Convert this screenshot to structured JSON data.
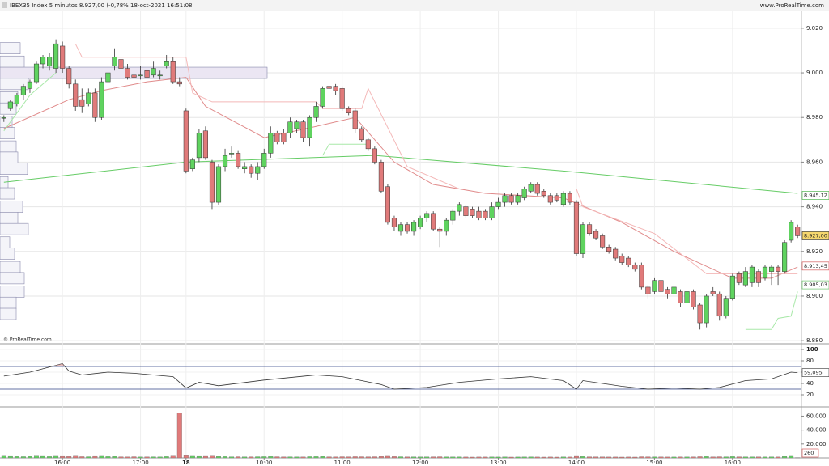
{
  "header": {
    "title": "IBEX35 Index 5 minutos 8.927,00 (-0,78% 18-oct-2021 16:51:08",
    "site": "www.ProRealTime.com",
    "copyright": "© ProRealTime.com"
  },
  "chart_data": [
    {
      "type": "candlestick",
      "xlim": [
        -0.6,
        122.6
      ],
      "xticks": [
        {
          "value": 9,
          "label": "16:00"
        },
        {
          "value": 21,
          "label": "17:00"
        },
        {
          "value": 28,
          "label": "18"
        },
        {
          "value": 40,
          "label": "10:00"
        },
        {
          "value": 52,
          "label": "11:00"
        },
        {
          "value": 64,
          "label": "12:00"
        },
        {
          "value": 76,
          "label": "13:00"
        },
        {
          "value": 88,
          "label": "14:00"
        },
        {
          "value": 100,
          "label": "15:00"
        },
        {
          "value": 112,
          "label": "16:00"
        }
      ],
      "ylim": [
        8878.6,
        9027.2
      ],
      "yticks": [
        {
          "value": 9020,
          "label": "9.020"
        },
        {
          "value": 9000,
          "label": "9.000"
        },
        {
          "value": 8980,
          "label": "8.980"
        },
        {
          "value": 8960,
          "label": "8.960"
        },
        {
          "value": 8940,
          "label": "8.940"
        },
        {
          "value": 8920,
          "label": "8.920"
        },
        {
          "value": 8900,
          "label": "8.900"
        },
        {
          "value": 8880,
          "label": "8.880"
        }
      ],
      "up_color": "#5fd35f",
      "down_color": "#e07a7a",
      "candles": [
        [
          8980,
          8981,
          8978,
          8980
        ],
        [
          8984,
          8988,
          8983,
          8987
        ],
        [
          8986,
          8991,
          8985,
          8990
        ],
        [
          8990,
          8995,
          8988,
          8994
        ],
        [
          8993,
          8997,
          8991,
          8996
        ],
        [
          8996,
          9005,
          8995,
          9004
        ],
        [
          9004,
          9008,
          9002,
          9007
        ],
        [
          9003,
          9009,
          9001,
          9007
        ],
        [
          9002,
          9015,
          9000,
          9013
        ],
        [
          9012,
          9014,
          9000,
          9002
        ],
        [
          9002,
          9003,
          8993,
          8995
        ],
        [
          8995,
          8997,
          8983,
          8985
        ],
        [
          8988,
          8993,
          8982,
          8985
        ],
        [
          8986,
          8993,
          8985,
          8991
        ],
        [
          8991,
          8993,
          8978,
          8980
        ],
        [
          8980,
          8998,
          8979,
          8996
        ],
        [
          8996,
          9002,
          8994,
          9000
        ],
        [
          9003,
          9011,
          9001,
          9007
        ],
        [
          9006,
          9007,
          9000,
          9002
        ],
        [
          9002,
          9004,
          8997,
          8998
        ],
        [
          8999,
          9002,
          8997,
          8998
        ],
        [
          8999,
          9003,
          8997,
          8999
        ],
        [
          9001,
          9002,
          8997,
          8998
        ],
        [
          8999,
          9005,
          8998,
          9002
        ],
        [
          8999,
          9001,
          8997,
          8999
        ],
        [
          9003,
          9008,
          9002,
          9005
        ],
        [
          9005,
          9007,
          8995,
          8996
        ],
        [
          8996,
          8998,
          8994,
          8995
        ],
        [
          8983,
          8984,
          8955,
          8956
        ],
        [
          8957,
          8962,
          8956,
          8961
        ],
        [
          8962,
          8975,
          8960,
          8973
        ],
        [
          8974,
          8976,
          8961,
          8962
        ],
        [
          8960,
          8961,
          8939,
          8942
        ],
        [
          8942,
          8959,
          8941,
          8958
        ],
        [
          8958,
          8966,
          8956,
          8963
        ],
        [
          8964,
          8967,
          8962,
          8964
        ],
        [
          8964,
          8965,
          8957,
          8958
        ],
        [
          8957,
          8960,
          8955,
          8958
        ],
        [
          8958,
          8959,
          8953,
          8955
        ],
        [
          8955,
          8960,
          8952,
          8958
        ],
        [
          8958,
          8966,
          8957,
          8964
        ],
        [
          8964,
          8976,
          8962,
          8973
        ],
        [
          8973,
          8974,
          8968,
          8969
        ],
        [
          8973,
          8975,
          8968,
          8969
        ],
        [
          8973,
          8980,
          8971,
          8978
        ],
        [
          8975,
          8979,
          8973,
          8978
        ],
        [
          8978,
          8979,
          8969,
          8971
        ],
        [
          8971,
          8981,
          8967,
          8980
        ],
        [
          8980,
          8987,
          8978,
          8985
        ],
        [
          8985,
          8994,
          8984,
          8993
        ],
        [
          8994,
          8996,
          8992,
          8993
        ],
        [
          8994,
          8995,
          8990,
          8992
        ],
        [
          8993,
          8994,
          8983,
          8984
        ],
        [
          8984,
          8985,
          8981,
          8982
        ],
        [
          8983,
          8984,
          8973,
          8975
        ],
        [
          8975,
          8976,
          8969,
          8970
        ],
        [
          8970,
          8971,
          8965,
          8966
        ],
        [
          8966,
          8967,
          8959,
          8960
        ],
        [
          8960,
          8961,
          8946,
          8947
        ],
        [
          8949,
          8950,
          8932,
          8933
        ],
        [
          8935,
          8936,
          8929,
          8931
        ],
        [
          8929,
          8933,
          8927,
          8932
        ],
        [
          8932,
          8933,
          8928,
          8929
        ],
        [
          8929,
          8934,
          8927,
          8933
        ],
        [
          8931,
          8936,
          8930,
          8935
        ],
        [
          8935,
          8938,
          8933,
          8937
        ],
        [
          8937,
          8938,
          8929,
          8930
        ],
        [
          8930,
          8931,
          8922,
          8929
        ],
        [
          8929,
          8935,
          8927,
          8934
        ],
        [
          8934,
          8939,
          8932,
          8938
        ],
        [
          8938,
          8942,
          8936,
          8941
        ],
        [
          8940,
          8941,
          8935,
          8936
        ],
        [
          8939,
          8940,
          8935,
          8936
        ],
        [
          8938,
          8940,
          8934,
          8935
        ],
        [
          8938,
          8939,
          8934,
          8935
        ],
        [
          8935,
          8942,
          8934,
          8940
        ],
        [
          8940,
          8944,
          8939,
          8942
        ],
        [
          8942,
          8946,
          8940,
          8945
        ],
        [
          8945,
          8946,
          8941,
          8942
        ],
        [
          8942,
          8946,
          8941,
          8945
        ],
        [
          8944,
          8949,
          8943,
          8948
        ],
        [
          8947,
          8951,
          8946,
          8950
        ],
        [
          8950,
          8951,
          8945,
          8946
        ],
        [
          8947,
          8948,
          8944,
          8945
        ],
        [
          8945,
          8946,
          8941,
          8942
        ],
        [
          8945,
          8946,
          8942,
          8943
        ],
        [
          8941,
          8947,
          8940,
          8946
        ],
        [
          8946,
          8947,
          8941,
          8942
        ],
        [
          8942,
          8943,
          8918,
          8919
        ],
        [
          8919,
          8933,
          8917,
          8932
        ],
        [
          8932,
          8933,
          8927,
          8928
        ],
        [
          8929,
          8930,
          8925,
          8926
        ],
        [
          8927,
          8928,
          8921,
          8922
        ],
        [
          8922,
          8923,
          8919,
          8920
        ],
        [
          8921,
          8922,
          8916,
          8917
        ],
        [
          8918,
          8919,
          8914,
          8915
        ],
        [
          8917,
          8918,
          8913,
          8914
        ],
        [
          8914,
          8915,
          8911,
          8912
        ],
        [
          8914,
          8915,
          8903,
          8904
        ],
        [
          8904,
          8905,
          8899,
          8901
        ],
        [
          8902,
          8908,
          8901,
          8907
        ],
        [
          8907,
          8908,
          8901,
          8902
        ],
        [
          8903,
          8904,
          8899,
          8901
        ],
        [
          8901,
          8905,
          8900,
          8904
        ],
        [
          8902,
          8903,
          8895,
          8897
        ],
        [
          8897,
          8903,
          8896,
          8902
        ],
        [
          8902,
          8903,
          8894,
          8895
        ],
        [
          8896,
          8897,
          8885,
          8888
        ],
        [
          8888,
          8901,
          8886,
          8900
        ],
        [
          8902,
          8904,
          8900,
          8901
        ],
        [
          8901,
          8902,
          8889,
          8891
        ],
        [
          8891,
          8900,
          8890,
          8899
        ],
        [
          8899,
          8910,
          8898,
          8909
        ],
        [
          8910,
          8911,
          8905,
          8906
        ],
        [
          8905,
          8913,
          8904,
          8911
        ],
        [
          8906,
          8914,
          8904,
          8913
        ],
        [
          8911,
          8912,
          8904,
          8906
        ],
        [
          8908,
          8914,
          8907,
          8913
        ],
        [
          8911,
          8914,
          8905,
          8913
        ],
        [
          8913,
          8914,
          8905,
          8911
        ],
        [
          8911,
          8925,
          8910,
          8924
        ],
        [
          8925,
          8934,
          8924,
          8933
        ],
        [
          8931,
          8932,
          8926,
          8927
        ]
      ],
      "series": [
        {
          "color": "#e08a8a",
          "x": [
            0,
            10,
            15,
            22,
            28,
            31,
            40,
            48,
            54,
            60,
            66,
            74,
            86,
            95,
            103,
            112,
            118,
            122
          ],
          "values": [
            8975,
            8988,
            8992,
            8996,
            8998,
            8985,
            8971,
            8976,
            8980,
            8960,
            8950,
            8946,
            8944,
            8933,
            8920,
            8908,
            8908,
            8913
          ]
        },
        {
          "color": "#66cc66",
          "x": [
            0,
            28,
            57,
            86,
            122
          ],
          "values": [
            8951,
            8960,
            8963,
            8956,
            8946
          ]
        },
        {
          "color": "#f4b8b8",
          "x": [
            11,
            12,
            28,
            29,
            32,
            48,
            49,
            55,
            56,
            62,
            70,
            88,
            89,
            100,
            108,
            122
          ],
          "values": [
            9013,
            9007,
            9007,
            8991,
            8987,
            8987,
            8984,
            8984,
            8993,
            8958,
            8948,
            8948,
            8940,
            8928,
            8910,
            8910
          ]
        },
        {
          "color": "#a8e8a8",
          "x": [
            0,
            2,
            4,
            8,
            9,
            49,
            50,
            56,
            57,
            114,
            118,
            119,
            121,
            122
          ],
          "values": [
            8974,
            8982,
            8990,
            9000,
            null,
            8963,
            8968,
            8968,
            null,
            8885,
            8885,
            8890,
            8891,
            8902
          ]
        }
      ],
      "value_badges": [
        {
          "value": 8945.12,
          "label": "8.945,12",
          "color": "#33aa33"
        },
        {
          "value": 8927,
          "label": "8.927,00",
          "color": "#222"
        },
        {
          "value": 8913.45,
          "label": "8.913,45",
          "color": "#cc4444"
        },
        {
          "value": 8905.03,
          "label": "8.905,03",
          "color": "#55bb55"
        }
      ],
      "volume_profile": {
        "prices": [
          9011,
          9005,
          9000,
          8995,
          8989,
          8984,
          8978,
          8973,
          8967,
          8962,
          8957,
          8951,
          8946,
          8940,
          8935,
          8930,
          8924,
          8919,
          8913,
          8908,
          8902,
          8897,
          8892
        ],
        "values": [
          25,
          30,
          330,
          35,
          22,
          20,
          15,
          18,
          20,
          22,
          34,
          10,
          18,
          28,
          22,
          35,
          12,
          18,
          25,
          30,
          30,
          20,
          20
        ]
      }
    },
    {
      "type": "line",
      "ylim": [
        0,
        110
      ],
      "yticks": [
        100,
        80,
        60,
        40,
        20
      ],
      "levels": [
        70,
        30
      ],
      "x": [
        0,
        4,
        8,
        9,
        10,
        12,
        16,
        20,
        26,
        28,
        30,
        33,
        40,
        48,
        52,
        58,
        60,
        65,
        70,
        76,
        81,
        86,
        88,
        89,
        95,
        99,
        103,
        107,
        110,
        114,
        118,
        121,
        122
      ],
      "values": [
        53,
        60,
        72,
        75,
        62,
        55,
        60,
        58,
        52,
        32,
        42,
        36,
        46,
        55,
        52,
        38,
        30,
        33,
        42,
        48,
        52,
        45,
        30,
        45,
        35,
        30,
        32,
        30,
        33,
        45,
        48,
        60,
        59.095
      ],
      "value_badge": {
        "value": 59.095,
        "label": "59,095"
      }
    },
    {
      "type": "bar",
      "ylim": [
        0,
        71000
      ],
      "yticks": [
        {
          "value": 60000,
          "label": "60.000"
        },
        {
          "value": 40000,
          "label": "40.000"
        },
        {
          "value": 20000,
          "label": "20.000"
        }
      ],
      "up_color": "#5fd35f",
      "down_color": "#e07a7a",
      "values": [
        2500,
        2200,
        2000,
        1800,
        2100,
        2600,
        2300,
        1900,
        2400,
        2200,
        2000,
        2500,
        1800,
        1700,
        2200,
        2400,
        1900,
        2100,
        1600,
        1500,
        1700,
        1400,
        1500,
        1600,
        1500,
        1900,
        2600,
        65000,
        3200,
        2400,
        2200,
        2300,
        2600,
        2100,
        1900,
        1600,
        1700,
        1500,
        1600,
        1700,
        1800,
        2000,
        1700,
        1500,
        1600,
        1500,
        1400,
        1800,
        1900,
        2100,
        1600,
        1500,
        1700,
        1600,
        1800,
        1700,
        1600,
        1700,
        2100,
        2400,
        1900,
        1700,
        1500,
        1500,
        1400,
        1500,
        1600,
        1700,
        1500,
        1400,
        1500,
        1300,
        1200,
        1300,
        1300,
        1400,
        1300,
        1400,
        1200,
        1300,
        1400,
        1500,
        1300,
        1200,
        1300,
        1200,
        1400,
        1300,
        2300,
        2000,
        1600,
        1500,
        1400,
        1300,
        1300,
        1200,
        1300,
        1200,
        1700,
        1600,
        1500,
        1400,
        1300,
        1300,
        1500,
        1400,
        1500,
        1800,
        2000,
        1500,
        1700,
        1600,
        1900,
        1600,
        1500,
        1500,
        1500,
        1400,
        1500,
        1400,
        2100,
        2400,
        260
      ],
      "value_badge": {
        "value": 260,
        "label": "260"
      }
    }
  ]
}
